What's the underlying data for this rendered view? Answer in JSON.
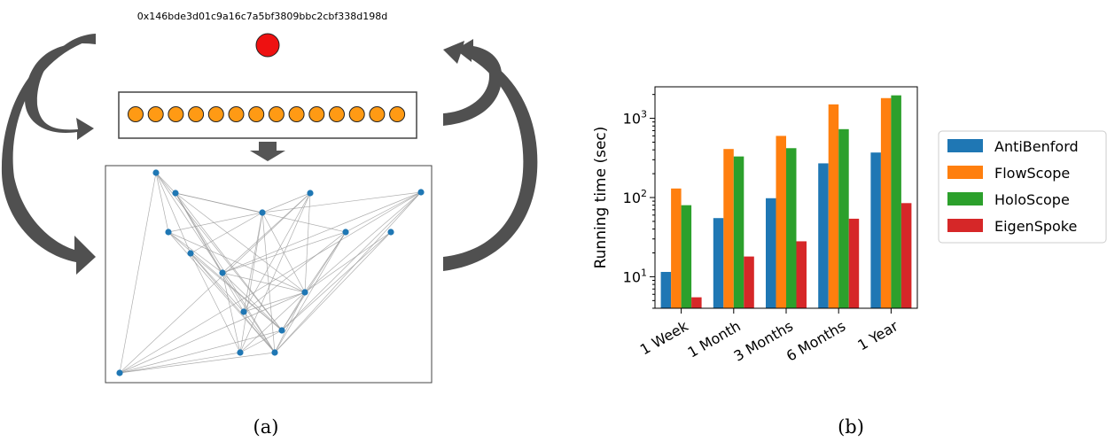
{
  "panel_a": {
    "address": "0x146bde3d01c9a16c7a5bf3809bbc2cbf338d198d",
    "caption": "(a)",
    "sequence_count": 14,
    "colors": {
      "root_node": "#ee1111",
      "sequence_node": "#ff9a14",
      "graph_node": "#1f77b4",
      "arrow": "#555555"
    },
    "icons": [
      "curved-arrow-icon",
      "down-arrow-icon"
    ]
  },
  "panel_b": {
    "caption": "(b)",
    "chart_data": {
      "type": "bar",
      "ylabel": "Running time (sec)",
      "yscale": "log",
      "ylim": [
        4,
        2500
      ],
      "y_ticks": [
        {
          "value": 10,
          "base": "10",
          "exp": "1"
        },
        {
          "value": 100,
          "base": "10",
          "exp": "2"
        },
        {
          "value": 1000,
          "base": "10",
          "exp": "3"
        }
      ],
      "categories": [
        "1 Week",
        "1 Month",
        "3 Months",
        "6 Months",
        "1 Year"
      ],
      "series": [
        {
          "name": "AntiBenford",
          "color": "#1f77b4",
          "values": [
            11.5,
            55,
            98,
            270,
            370
          ]
        },
        {
          "name": "FlowScope",
          "color": "#ff7f0e",
          "values": [
            130,
            410,
            600,
            1500,
            1800
          ]
        },
        {
          "name": "HoloScope",
          "color": "#2ca02c",
          "values": [
            80,
            330,
            420,
            730,
            1950
          ]
        },
        {
          "name": "EigenSpoke",
          "color": "#d62728",
          "values": [
            5.5,
            18,
            28,
            54,
            85
          ]
        }
      ],
      "legend_position": "right",
      "grid": false
    }
  }
}
